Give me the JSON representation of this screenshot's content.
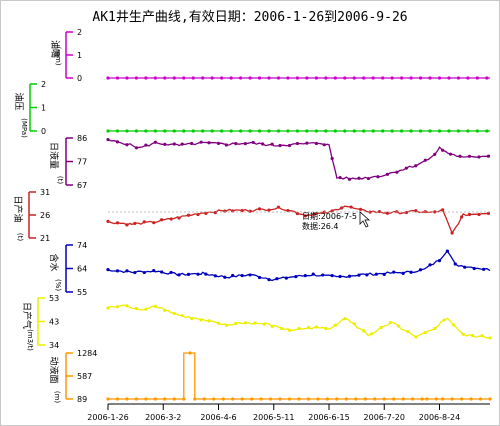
{
  "title": "AK1井生产曲线,有效日期：2006-1-26到2006-9-26",
  "tooltip": {
    "date_label": "日期:2006-7-5",
    "value_label": "数据:26.4"
  },
  "chart_data": {
    "type": "line",
    "x": {
      "start": "2006-1-26",
      "end": "2006-9-26",
      "ticks": [
        "2006-1-26",
        "2006-3-2",
        "2006-4-6",
        "2006-5-11",
        "2006-6-15",
        "2006-7-20",
        "2006-8-24"
      ]
    },
    "panels": [
      {
        "id": "chou",
        "axis_label": "油嘴",
        "unit": "(mm)",
        "ticks": [
          "2",
          "1",
          "0"
        ],
        "ylim": [
          0,
          2
        ],
        "color": "#cc00cc",
        "keys": [
          [
            0,
            0
          ],
          [
            242,
            0
          ]
        ]
      },
      {
        "id": "yy",
        "axis_label": "油压",
        "unit": "(MPa)",
        "ticks": [
          "2",
          "1",
          "0"
        ],
        "ylim": [
          0,
          2
        ],
        "color": "#00cc00",
        "keys": [
          [
            0,
            0
          ],
          [
            242,
            0
          ]
        ]
      },
      {
        "id": "ry",
        "axis_label": "日液量",
        "unit": "(t)",
        "ticks": [
          "86",
          "77",
          "67"
        ],
        "ylim": [
          67,
          86
        ],
        "color": "#800080",
        "keys": [
          [
            0,
            85
          ],
          [
            10,
            84
          ],
          [
            20,
            82
          ],
          [
            30,
            84
          ],
          [
            45,
            83
          ],
          [
            60,
            84
          ],
          [
            75,
            83.5
          ],
          [
            90,
            84
          ],
          [
            105,
            83
          ],
          [
            120,
            83.5
          ],
          [
            135,
            84
          ],
          [
            140,
            83
          ],
          [
            145,
            70
          ],
          [
            155,
            69.5
          ],
          [
            165,
            70
          ],
          [
            175,
            71
          ],
          [
            185,
            73
          ],
          [
            195,
            75
          ],
          [
            205,
            78
          ],
          [
            210,
            82
          ],
          [
            215,
            80
          ],
          [
            225,
            78
          ],
          [
            242,
            79
          ]
        ]
      },
      {
        "id": "rs",
        "axis_label": "日产油",
        "unit": "(t)",
        "ticks": [
          "31",
          "26",
          "21"
        ],
        "ylim": [
          21,
          31
        ],
        "color": "#cc2222",
        "keys": [
          [
            0,
            24.5
          ],
          [
            15,
            24
          ],
          [
            30,
            24.5
          ],
          [
            45,
            25.5
          ],
          [
            60,
            26.5
          ],
          [
            75,
            27
          ],
          [
            90,
            27
          ],
          [
            110,
            27.5
          ],
          [
            125,
            26
          ],
          [
            140,
            26.5
          ],
          [
            150,
            28
          ],
          [
            160,
            27
          ],
          [
            175,
            26.5
          ],
          [
            185,
            26.5
          ],
          [
            195,
            26.8
          ],
          [
            205,
            26.5
          ],
          [
            212,
            27
          ],
          [
            218,
            22
          ],
          [
            225,
            26
          ],
          [
            242,
            26.5
          ]
        ]
      },
      {
        "id": "hs",
        "axis_label": "含水",
        "unit": "(%)",
        "ticks": [
          "74",
          "64",
          "55"
        ],
        "ylim": [
          55,
          74
        ],
        "color": "#0000bb",
        "keys": [
          [
            0,
            64
          ],
          [
            15,
            63
          ],
          [
            30,
            63.5
          ],
          [
            45,
            62
          ],
          [
            60,
            62.5
          ],
          [
            75,
            61
          ],
          [
            90,
            62
          ],
          [
            105,
            60
          ],
          [
            115,
            61
          ],
          [
            130,
            62
          ],
          [
            145,
            61
          ],
          [
            160,
            62
          ],
          [
            175,
            62.5
          ],
          [
            190,
            63
          ],
          [
            200,
            64
          ],
          [
            210,
            68
          ],
          [
            215,
            72
          ],
          [
            220,
            66
          ],
          [
            242,
            64
          ]
        ]
      },
      {
        "id": "rq",
        "axis_label": "日产气",
        "unit": "(m3/t)",
        "ticks": [
          "53",
          "43",
          "34"
        ],
        "ylim": [
          34,
          53
        ],
        "color": "#eeee00",
        "keys": [
          [
            0,
            49
          ],
          [
            10,
            50
          ],
          [
            20,
            48
          ],
          [
            30,
            50
          ],
          [
            45,
            46
          ],
          [
            60,
            44
          ],
          [
            75,
            42
          ],
          [
            85,
            43
          ],
          [
            100,
            42.5
          ],
          [
            115,
            40
          ],
          [
            130,
            41
          ],
          [
            140,
            40.5
          ],
          [
            150,
            45
          ],
          [
            165,
            38
          ],
          [
            180,
            43
          ],
          [
            195,
            37
          ],
          [
            205,
            40
          ],
          [
            215,
            45
          ],
          [
            225,
            38
          ],
          [
            242,
            37
          ]
        ]
      },
      {
        "id": "dy",
        "axis_label": "动液面",
        "unit": "(m)",
        "ticks": [
          "1284",
          "587",
          "89"
        ],
        "ylim": [
          89,
          1284
        ],
        "color": "#ff9900",
        "keys": [
          [
            0,
            89
          ],
          [
            48,
            89
          ],
          [
            48,
            1284
          ],
          [
            55,
            1284
          ],
          [
            55,
            89
          ],
          [
            200,
            89
          ],
          [
            200,
            50
          ],
          [
            210,
            50
          ],
          [
            210,
            89
          ],
          [
            242,
            89
          ]
        ]
      }
    ]
  }
}
